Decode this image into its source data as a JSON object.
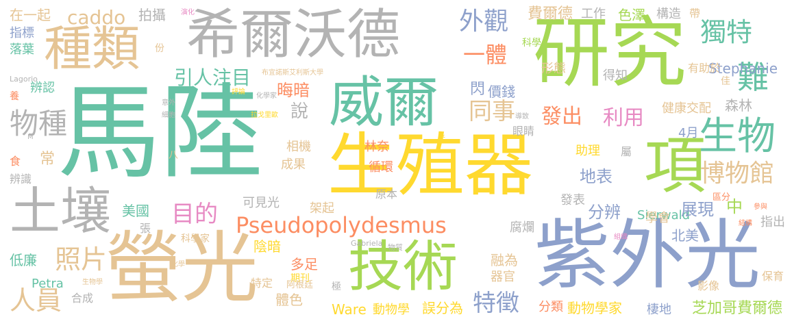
{
  "words": {
    "malu": "馬陸",
    "shengzhiqi": "生殖器",
    "yanjiu": "研究",
    "ziwaiguang": "紫外光",
    "yingguang": "螢光",
    "xierwode": "希爾沃德",
    "weier": "威爾",
    "jishu": "技術",
    "zhonglei": "種類",
    "turang": "土壤",
    "xiang": "項",
    "shengwu": "生物",
    "pseudo": "Pseudopolydesmus",
    "bowuguan": "博物館",
    "waiguan": "外觀",
    "dute": "獨特",
    "yiti": "一體",
    "wuzhong": "物種",
    "zhaopian": "照片",
    "renyuan": "人員",
    "mudi": "目的",
    "tongshi": "同事",
    "fachu": "發出",
    "liyong": "利用",
    "tezheng": "特徵",
    "yinren": "引人注目",
    "caddo": "caddo",
    "nan": "難",
    "zhong": "中",
    "stephanie": "Stephanie",
    "sierwald": "Sierwald",
    "ware": "Ware",
    "feierde": "費爾德",
    "zhijiage": "芝加哥費爾德",
    "dongwuxuejia": "動物學家",
    "dongwuxue": "動物學",
    "wufenwei": "誤分為",
    "fenlei": "分類",
    "qidi": "棲地",
    "zhanxian": "展現",
    "fenbian": "分辨",
    "dibiao": "地表",
    "fabiao": "發表",
    "xuehui": "學會",
    "beimei": "北美",
    "fulan": "腐爛",
    "rongwei": "融為",
    "qiguan": "器官",
    "duozu": "多足",
    "tise": "體色",
    "yinan": "陰暗",
    "huian": "晦暗",
    "shan": "閃",
    "jiaqian": "價錢",
    "xingtai": "形態",
    "kexue": "科學",
    "sexi": "色澤",
    "gongzuo": "工作",
    "gouzao": "構造",
    "dai": "帶",
    "zaiyiqi": "在一起",
    "paishe": "拍攝",
    "zhibiao": "指標",
    "luoye": "落葉",
    "fen": "份",
    "bianren": "辨認",
    "bianshi": "辨識",
    "shi": "食",
    "chang": "常",
    "dijian": "低廉",
    "petra": "Petra",
    "hecheng": "合成",
    "zhang": "張",
    "kexuejia": "科學家",
    "meiguo": "美國",
    "kejianguang": "可見光",
    "jiaqi": "架起",
    "yuanben": "原本",
    "chengguo": "成果",
    "xiangji": "相機",
    "xunhuan": "循環",
    "linnai": "林奈",
    "shuo": "說",
    "senlin": "森林",
    "jiankang": "健康交配",
    "yanjing": "眼睛",
    "zhuli": "助理",
    "shu": "屬",
    "siyue": "4月",
    "qufen": "區分",
    "zhichu": "指出",
    "baoyu": "保育",
    "yingxiang": "影像",
    "youzhuyu": "有助於",
    "dezhi": "得知",
    "jia": "佳",
    "qikan": "期刊",
    "teding": "特定",
    "agenting": "阿根廷",
    "ji": "極",
    "gabriela": "Gabriela",
    "wuzhi": "物質",
    "huaxue": "化學",
    "shengwuxue": "生物學",
    "lagorio": "Lagorio",
    "buyinuosi": "布宜諾斯艾利斯大學",
    "pinglun": "評論",
    "huaxuejia": "化學家",
    "yanhua": "演化",
    "yang": "養",
    "yiwai": "意外",
    "xibao": "細胞",
    "lagelige": "拉戈里歐",
    "daozhi": "導致",
    "ba": "八",
    "m": "M",
    "guang": "光",
    "canyu": "參與",
    "jiegou": "結構",
    "zuzhi": "組織"
  },
  "palette": {
    "green": "#66c2a5",
    "orange": "#fc8d62",
    "blue": "#8da0cb",
    "pink": "#e78ac3",
    "lime": "#a6d854",
    "yellow": "#ffd92f",
    "tan": "#e5c494",
    "gray": "#b3b3b3"
  }
}
